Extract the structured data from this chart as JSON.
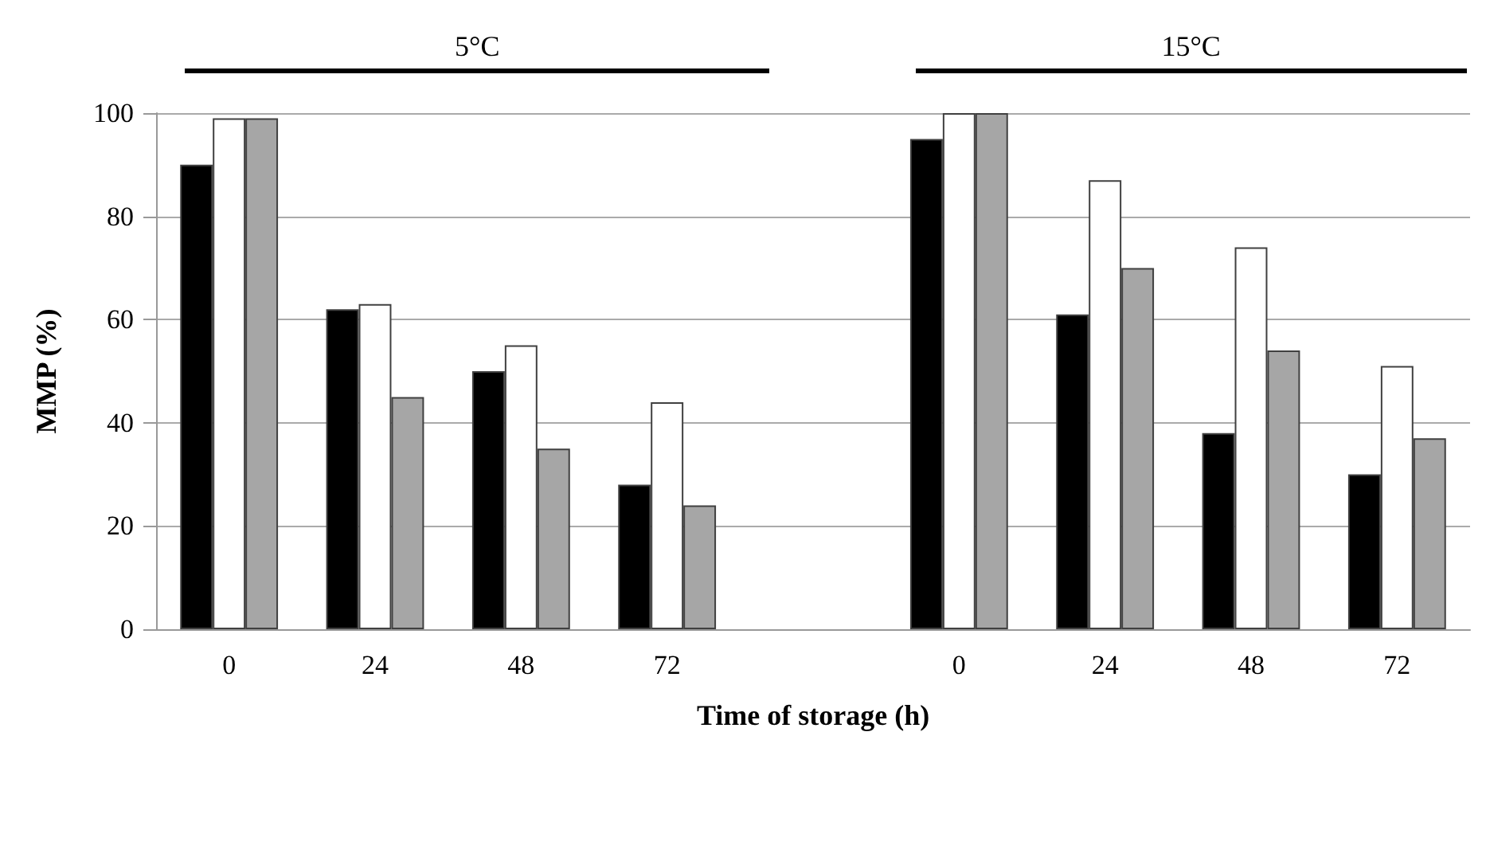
{
  "chart_data": {
    "type": "bar",
    "xlabel": "Time of storage (h)",
    "ylabel": "MMP (%)",
    "categories": [
      "0",
      "24",
      "48",
      "72",
      null,
      "0",
      "24",
      "48",
      "72"
    ],
    "series": [
      {
        "color": "#000000",
        "values": [
          90,
          62,
          50,
          28,
          null,
          95,
          61,
          38,
          30
        ]
      },
      {
        "color": "#ffffff",
        "values": [
          99,
          63,
          55,
          44,
          null,
          100,
          87,
          74,
          51
        ]
      },
      {
        "color": "#a6a6a6",
        "values": [
          99,
          45,
          35,
          24,
          null,
          100,
          70,
          54,
          37
        ]
      }
    ],
    "ylim": [
      0,
      100
    ],
    "yticks": [
      0,
      20,
      40,
      60,
      80,
      100
    ],
    "grid": "y",
    "annotations": [
      "5°C",
      "15°C"
    ]
  }
}
